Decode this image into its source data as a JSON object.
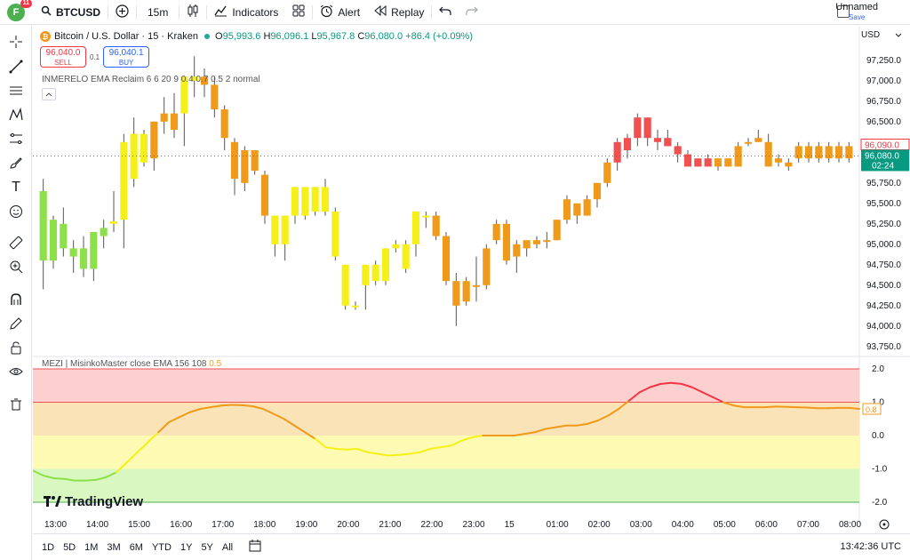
{
  "topbar": {
    "avatar_letter": "F",
    "avatar_badge": "11",
    "symbol": "BTCUSD",
    "interval": "15m",
    "indicators_label": "Indicators",
    "alert_label": "Alert",
    "replay_label": "Replay",
    "layout_name": "Unnamed",
    "save_label": "Save"
  },
  "legend": {
    "coin_letter": "₿",
    "title": "Bitcoin / U.S. Dollar · 15 · Kraken",
    "o_label": "O",
    "o": "95,993.6",
    "h_label": "H",
    "h": "96,096.1",
    "l_label": "L",
    "l": "95,967.8",
    "c_label": "C",
    "c": "96,080.0",
    "change": "+86.4 (+0.09%)"
  },
  "trade": {
    "sell_price": "96,040.0",
    "sell_label": "SELL",
    "lot": "0.1",
    "buy_price": "96,040.1",
    "buy_label": "BUY"
  },
  "indicator_legend": "INMERELO EMA Reclaim 6 6 20 9 0.4 0.7 0.5 2 normal",
  "collapse_icon": "chevron-up-icon",
  "oscillator": {
    "name": "MEZI | MisinkoMaster close EMA 156 108",
    "value": "0.5",
    "current_value": "0.8",
    "zones": [
      {
        "from": 1,
        "to": 2,
        "color": "#fcd0cf"
      },
      {
        "from": 0,
        "to": 1,
        "color": "#fbe3b8"
      },
      {
        "from": -1,
        "to": 0,
        "color": "#fdfbb3"
      },
      {
        "from": -2,
        "to": -1,
        "color": "#d9f7c0"
      }
    ],
    "line_colors": {
      "red": "#f23645",
      "orange": "#ef9a1a",
      "yellow": "#f5f01a",
      "green": "#8ee04a"
    }
  },
  "currency": "USD",
  "price_labels": {
    "sell_marker": "96,090.0",
    "last_price": "96,080.0",
    "countdown": "02:24"
  },
  "brand": "TradingView",
  "bottombar": {
    "ranges": [
      "1D",
      "5D",
      "1M",
      "3M",
      "6M",
      "YTD",
      "1Y",
      "5Y",
      "All"
    ],
    "clock": "13:42:36 UTC"
  },
  "colors": {
    "bull": "#f5f01a",
    "bear": "#ef9a1a",
    "red": "#f05050",
    "green": "#8ee04a",
    "up": "#089981"
  },
  "chart_data": {
    "type": "candlestick",
    "price_ticks": [
      97250,
      97000,
      96750,
      96500,
      96250,
      96000,
      95750,
      95500,
      95250,
      95000,
      94750,
      94500,
      94250,
      94000,
      93750
    ],
    "price_tick_labels": [
      "97,250.0",
      "97,000.0",
      "96,750.0",
      "96,500.0",
      "96,250.0",
      "96,000.0",
      "95,750.0",
      "95,500.0",
      "95,250.0",
      "95,000.0",
      "94,750.0",
      "94,500.0",
      "94,250.0",
      "94,000.0",
      "93,750.0"
    ],
    "osc_ticks": [
      2,
      1,
      0,
      -1,
      -2
    ],
    "osc_tick_labels": [
      "2.0",
      "1.0",
      "0.0",
      "-1.0",
      "-2.0"
    ],
    "time_labels": [
      "13:00",
      "14:00",
      "15:00",
      "16:00",
      "17:00",
      "18:00",
      "19:00",
      "20:00",
      "21:00",
      "22:00",
      "23:00",
      "15",
      "01:00",
      "02:00",
      "03:00",
      "04:00",
      "05:00",
      "06:00",
      "07:00",
      "08:00"
    ],
    "candles": [
      {
        "o": 95650,
        "h": 95800,
        "l": 94450,
        "c": 94800,
        "col": "green"
      },
      {
        "o": 94800,
        "h": 95350,
        "l": 94700,
        "c": 95300,
        "col": "green"
      },
      {
        "o": 95250,
        "h": 95450,
        "l": 94850,
        "c": 94950,
        "col": "green"
      },
      {
        "o": 94950,
        "h": 95050,
        "l": 94650,
        "c": 94850,
        "col": "green"
      },
      {
        "o": 94950,
        "h": 95100,
        "l": 94600,
        "c": 94700,
        "col": "green"
      },
      {
        "o": 94700,
        "h": 95150,
        "l": 94550,
        "c": 95150,
        "col": "green"
      },
      {
        "o": 95100,
        "h": 95300,
        "l": 94950,
        "c": 95200,
        "col": "green"
      },
      {
        "o": 95250,
        "h": 95650,
        "l": 95150,
        "c": 95280,
        "col": "bull"
      },
      {
        "o": 95300,
        "h": 96350,
        "l": 94950,
        "c": 96250,
        "col": "bull"
      },
      {
        "o": 95800,
        "h": 96550,
        "l": 95700,
        "c": 96350,
        "col": "bull"
      },
      {
        "o": 96350,
        "h": 96400,
        "l": 95950,
        "c": 96000,
        "col": "bull"
      },
      {
        "o": 96050,
        "h": 96500,
        "l": 95900,
        "c": 96500,
        "col": "bear"
      },
      {
        "o": 96500,
        "h": 96800,
        "l": 96350,
        "c": 96600,
        "col": "bear"
      },
      {
        "o": 96600,
        "h": 96850,
        "l": 96300,
        "c": 96400,
        "col": "bear"
      },
      {
        "o": 96600,
        "h": 97050,
        "l": 96200,
        "c": 97050,
        "col": "bull"
      },
      {
        "o": 97000,
        "h": 97300,
        "l": 96800,
        "c": 97050,
        "col": "bull"
      },
      {
        "o": 97050,
        "h": 97150,
        "l": 96800,
        "c": 96950,
        "col": "bear"
      },
      {
        "o": 96950,
        "h": 97050,
        "l": 96550,
        "c": 96650,
        "col": "bear"
      },
      {
        "o": 96650,
        "h": 96700,
        "l": 96150,
        "c": 96300,
        "col": "bear"
      },
      {
        "o": 96250,
        "h": 96300,
        "l": 95600,
        "c": 95800,
        "col": "bear"
      },
      {
        "o": 96150,
        "h": 96200,
        "l": 95650,
        "c": 95750,
        "col": "bear"
      },
      {
        "o": 96150,
        "h": 96150,
        "l": 95850,
        "c": 95900,
        "col": "bear"
      },
      {
        "o": 95850,
        "h": 95900,
        "l": 95250,
        "c": 95350,
        "col": "bear"
      },
      {
        "o": 95000,
        "h": 95350,
        "l": 94850,
        "c": 95350,
        "col": "bull"
      },
      {
        "o": 95350,
        "h": 95350,
        "l": 94800,
        "c": 95000,
        "col": "bull"
      },
      {
        "o": 95350,
        "h": 95700,
        "l": 95250,
        "c": 95700,
        "col": "bull"
      },
      {
        "o": 95350,
        "h": 95700,
        "l": 95300,
        "c": 95700,
        "col": "bull"
      },
      {
        "o": 95400,
        "h": 95700,
        "l": 95350,
        "c": 95700,
        "col": "bull"
      },
      {
        "o": 95700,
        "h": 95800,
        "l": 95350,
        "c": 95400,
        "col": "bull"
      },
      {
        "o": 95400,
        "h": 95450,
        "l": 94800,
        "c": 94850,
        "col": "bull"
      },
      {
        "o": 94250,
        "h": 94750,
        "l": 94200,
        "c": 94750,
        "col": "bull"
      },
      {
        "o": 94250,
        "h": 94300,
        "l": 94200,
        "c": 94250,
        "col": "bull"
      },
      {
        "o": 94500,
        "h": 94750,
        "l": 94200,
        "c": 94750,
        "col": "bull"
      },
      {
        "o": 94550,
        "h": 94800,
        "l": 94500,
        "c": 94750,
        "col": "bull"
      },
      {
        "o": 94550,
        "h": 94950,
        "l": 94500,
        "c": 94950,
        "col": "bull"
      },
      {
        "o": 95000,
        "h": 95050,
        "l": 94900,
        "c": 94950,
        "col": "bull"
      },
      {
        "o": 94700,
        "h": 95050,
        "l": 94650,
        "c": 95000,
        "col": "bull"
      },
      {
        "o": 95000,
        "h": 95400,
        "l": 94850,
        "c": 95400,
        "col": "bull"
      },
      {
        "o": 95350,
        "h": 95400,
        "l": 95200,
        "c": 95350,
        "col": "bull"
      },
      {
        "o": 95350,
        "h": 95400,
        "l": 95050,
        "c": 95100,
        "col": "bear"
      },
      {
        "o": 95100,
        "h": 95150,
        "l": 94500,
        "c": 94550,
        "col": "bear"
      },
      {
        "o": 94550,
        "h": 94650,
        "l": 94000,
        "c": 94250,
        "col": "bear"
      },
      {
        "o": 94550,
        "h": 94600,
        "l": 94250,
        "c": 94300,
        "col": "bear"
      },
      {
        "o": 94500,
        "h": 94850,
        "l": 94300,
        "c": 94500,
        "col": "bear"
      },
      {
        "o": 94500,
        "h": 95000,
        "l": 94450,
        "c": 94950,
        "col": "bear"
      },
      {
        "o": 95050,
        "h": 95300,
        "l": 95000,
        "c": 95250,
        "col": "bear"
      },
      {
        "o": 95250,
        "h": 95300,
        "l": 94750,
        "c": 94800,
        "col": "bear"
      },
      {
        "o": 94850,
        "h": 95050,
        "l": 94650,
        "c": 95000,
        "col": "bear"
      },
      {
        "o": 94950,
        "h": 95050,
        "l": 94850,
        "c": 95050,
        "col": "bear"
      },
      {
        "o": 95000,
        "h": 95100,
        "l": 94950,
        "c": 95050,
        "col": "bear"
      },
      {
        "o": 95050,
        "h": 95150,
        "l": 94950,
        "c": 95050,
        "col": "bear"
      },
      {
        "o": 95050,
        "h": 95300,
        "l": 95050,
        "c": 95300,
        "col": "bear"
      },
      {
        "o": 95300,
        "h": 95600,
        "l": 95250,
        "c": 95550,
        "col": "bear"
      },
      {
        "o": 95350,
        "h": 95500,
        "l": 95250,
        "c": 95500,
        "col": "bear"
      },
      {
        "o": 95350,
        "h": 95600,
        "l": 95350,
        "c": 95550,
        "col": "bear"
      },
      {
        "o": 95550,
        "h": 95750,
        "l": 95450,
        "c": 95750,
        "col": "bear"
      },
      {
        "o": 95750,
        "h": 96050,
        "l": 95700,
        "c": 96000,
        "col": "bear"
      },
      {
        "o": 96000,
        "h": 96300,
        "l": 95900,
        "c": 96250,
        "col": "red"
      },
      {
        "o": 96150,
        "h": 96350,
        "l": 96050,
        "c": 96300,
        "col": "red"
      },
      {
        "o": 96300,
        "h": 96600,
        "l": 96200,
        "c": 96550,
        "col": "red"
      },
      {
        "o": 96550,
        "h": 96550,
        "l": 96200,
        "c": 96300,
        "col": "red"
      },
      {
        "o": 96300,
        "h": 96400,
        "l": 96150,
        "c": 96250,
        "col": "red"
      },
      {
        "o": 96300,
        "h": 96400,
        "l": 96200,
        "c": 96200,
        "col": "red"
      },
      {
        "o": 96200,
        "h": 96250,
        "l": 96000,
        "c": 96100,
        "col": "red"
      },
      {
        "o": 96100,
        "h": 96150,
        "l": 95950,
        "c": 95950,
        "col": "red"
      },
      {
        "o": 95950,
        "h": 96050,
        "l": 95950,
        "c": 96050,
        "col": "red"
      },
      {
        "o": 96050,
        "h": 96100,
        "l": 95950,
        "c": 95950,
        "col": "red"
      },
      {
        "o": 95950,
        "h": 96050,
        "l": 95900,
        "c": 96050,
        "col": "bear"
      },
      {
        "o": 96050,
        "h": 96050,
        "l": 95950,
        "c": 95950,
        "col": "bear"
      },
      {
        "o": 95950,
        "h": 96250,
        "l": 95950,
        "c": 96200,
        "col": "bear"
      },
      {
        "o": 96250,
        "h": 96300,
        "l": 96200,
        "c": 96250,
        "col": "bear"
      },
      {
        "o": 96250,
        "h": 96400,
        "l": 96250,
        "c": 96300,
        "col": "bear"
      },
      {
        "o": 96250,
        "h": 96350,
        "l": 95950,
        "c": 95950,
        "col": "bear"
      },
      {
        "o": 96000,
        "h": 96100,
        "l": 95950,
        "c": 96050,
        "col": "bear"
      },
      {
        "o": 96000,
        "h": 96050,
        "l": 95900,
        "c": 95950,
        "col": "bear"
      },
      {
        "o": 96050,
        "h": 96250,
        "l": 96000,
        "c": 96200,
        "col": "bear"
      },
      {
        "o": 96050,
        "h": 96250,
        "l": 96000,
        "c": 96200,
        "col": "bear"
      },
      {
        "o": 96050,
        "h": 96250,
        "l": 96000,
        "c": 96200,
        "col": "bear"
      },
      {
        "o": 96050,
        "h": 96250,
        "l": 96000,
        "c": 96200,
        "col": "bear"
      },
      {
        "o": 96050,
        "h": 96250,
        "l": 96000,
        "c": 96200,
        "col": "bear"
      },
      {
        "o": 96050,
        "h": 96250,
        "l": 96000,
        "c": 96200,
        "col": "bear"
      }
    ],
    "oscillator_series": [
      -1.05,
      -1.2,
      -1.28,
      -1.3,
      -1.35,
      -1.35,
      -1.33,
      -1.25,
      -1.1,
      -0.8,
      -0.5,
      -0.2,
      0.1,
      0.4,
      0.55,
      0.7,
      0.8,
      0.85,
      0.9,
      0.92,
      0.91,
      0.88,
      0.8,
      0.65,
      0.5,
      0.3,
      0.1,
      -0.1,
      -0.35,
      -0.4,
      -0.42,
      -0.4,
      -0.5,
      -0.55,
      -0.6,
      -0.58,
      -0.55,
      -0.5,
      -0.4,
      -0.35,
      -0.3,
      -0.15,
      -0.05,
      0.0,
      0.0,
      0.0,
      0.0,
      0.05,
      0.1,
      0.2,
      0.25,
      0.3,
      0.3,
      0.35,
      0.45,
      0.6,
      0.8,
      1.05,
      1.3,
      1.45,
      1.55,
      1.58,
      1.55,
      1.45,
      1.3,
      1.15,
      1.0,
      0.9,
      0.85,
      0.85,
      0.85,
      0.87,
      0.86,
      0.85,
      0.84,
      0.82,
      0.82,
      0.83,
      0.83,
      0.8
    ]
  }
}
